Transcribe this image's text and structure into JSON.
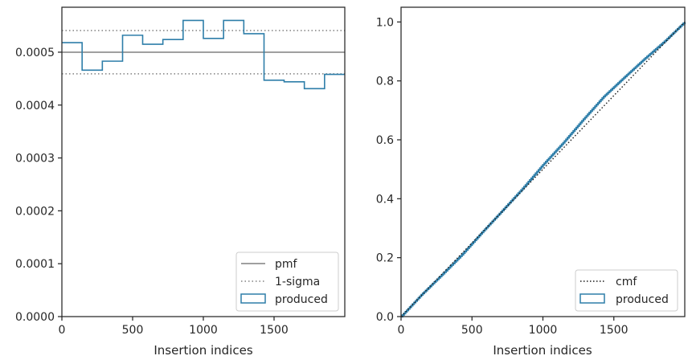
{
  "chart_data": [
    {
      "type": "line",
      "subtype": "step-histogram",
      "xlabel": "Insertion indices",
      "ylabel": "",
      "xlim": [
        0,
        2000
      ],
      "ylim": [
        0,
        0.000585
      ],
      "xticks": [
        0,
        500,
        1000,
        1500
      ],
      "yticks": [
        {
          "value": 0.0,
          "label": "0.0000"
        },
        {
          "value": 0.0001,
          "label": "0.0001"
        },
        {
          "value": 0.0002,
          "label": "0.0002"
        },
        {
          "value": 0.0003,
          "label": "0.0003"
        },
        {
          "value": 0.0004,
          "label": "0.0004"
        },
        {
          "value": 0.0005,
          "label": "0.0005"
        }
      ],
      "grid": false,
      "legend": {
        "position": "lower-right",
        "entries": [
          {
            "label": "pmf",
            "style": "solid",
            "color": "#808080"
          },
          {
            "label": "1-sigma",
            "style": "dotted",
            "color": "#808080"
          },
          {
            "label": "produced",
            "style": "box",
            "color": "#2e7ea9"
          }
        ]
      },
      "reference_lines": [
        {
          "name": "pmf",
          "y": 0.0005,
          "style": "solid",
          "color": "#808080"
        },
        {
          "name": "1-sigma",
          "y": 0.000541,
          "style": "dotted",
          "color": "#808080"
        },
        {
          "name": "1-sigma",
          "y": 0.000459,
          "style": "dotted",
          "color": "#808080"
        }
      ],
      "series": [
        {
          "name": "produced",
          "color": "#2e7ea9",
          "bin_edges": [
            0,
            143,
            286,
            429,
            571,
            714,
            857,
            1000,
            1143,
            1286,
            1429,
            1571,
            1714,
            1857,
            2000
          ],
          "values": [
            0.000518,
            0.000466,
            0.000483,
            0.000532,
            0.000515,
            0.000524,
            0.00056,
            0.000526,
            0.00056,
            0.000535,
            0.000447,
            0.000444,
            0.000431,
            0.000458
          ]
        }
      ]
    },
    {
      "type": "line",
      "subtype": "step-cumulative",
      "xlabel": "Insertion indices",
      "ylabel": "",
      "xlim": [
        0,
        2000
      ],
      "ylim": [
        0,
        1.05
      ],
      "xticks": [
        0,
        500,
        1000,
        1500
      ],
      "yticks": [
        {
          "value": 0.0,
          "label": "0.0"
        },
        {
          "value": 0.2,
          "label": "0.2"
        },
        {
          "value": 0.4,
          "label": "0.4"
        },
        {
          "value": 0.6,
          "label": "0.6"
        },
        {
          "value": 0.8,
          "label": "0.8"
        },
        {
          "value": 1.0,
          "label": "1.0"
        }
      ],
      "grid": false,
      "legend": {
        "position": "lower-right",
        "entries": [
          {
            "label": "cmf",
            "style": "dotted",
            "color": "#1a1a1a"
          },
          {
            "label": "produced",
            "style": "box",
            "color": "#2e7ea9"
          }
        ]
      },
      "reference_lines": [
        {
          "name": "cmf",
          "points": [
            [
              0,
              0
            ],
            [
              2000,
              1.0
            ]
          ],
          "style": "dotted",
          "color": "#1a1a1a"
        }
      ],
      "series": [
        {
          "name": "produced",
          "color": "#2e7ea9",
          "x": [
            0,
            143,
            286,
            429,
            571,
            714,
            857,
            1000,
            1143,
            1286,
            1429,
            1571,
            1714,
            1857,
            2000
          ],
          "y": [
            0,
            0.074,
            0.141,
            0.21,
            0.286,
            0.36,
            0.435,
            0.515,
            0.59,
            0.67,
            0.747,
            0.811,
            0.874,
            0.934,
            1.0
          ]
        }
      ]
    }
  ]
}
